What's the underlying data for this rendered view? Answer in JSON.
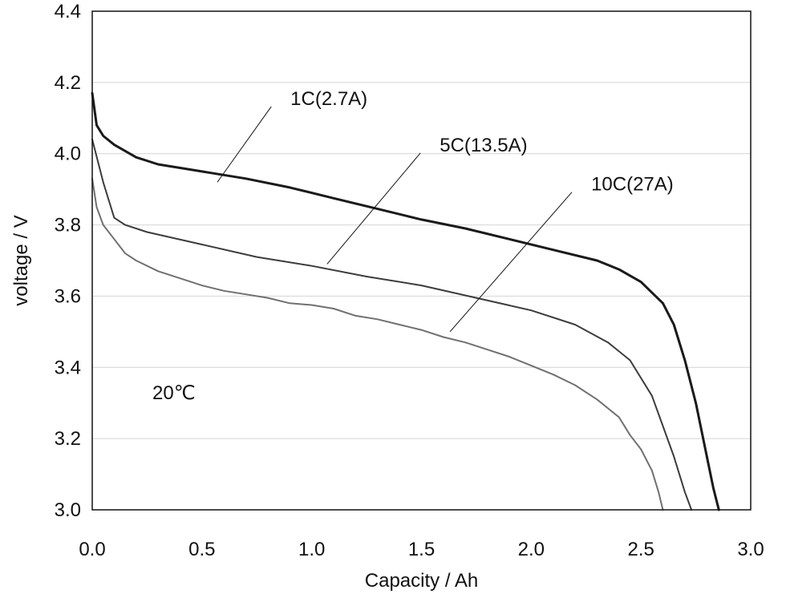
{
  "chart_data": {
    "type": "line",
    "title": "",
    "xlabel": "Capacity / Ah",
    "ylabel": "voltage / V",
    "xlim": [
      0.0,
      3.0
    ],
    "ylim": [
      3.0,
      4.4
    ],
    "xticks": [
      "0.0",
      "0.5",
      "1.0",
      "1.5",
      "2.0",
      "2.5",
      "3.0"
    ],
    "yticks": [
      "3.0",
      "3.2",
      "3.4",
      "3.6",
      "3.8",
      "4.0",
      "4.2",
      "4.4"
    ],
    "grid": "horizontal",
    "temperature_label": "20℃",
    "series": [
      {
        "name": "1C(2.7A)",
        "color": "#1a1a1a",
        "width": 3,
        "label_anchor": [
          0.83,
          4.15
        ],
        "leader_to": [
          0.57,
          3.92
        ],
        "points": [
          [
            0.0,
            4.17
          ],
          [
            0.02,
            4.08
          ],
          [
            0.05,
            4.05
          ],
          [
            0.1,
            4.025
          ],
          [
            0.2,
            3.99
          ],
          [
            0.3,
            3.97
          ],
          [
            0.5,
            3.95
          ],
          [
            0.7,
            3.93
          ],
          [
            0.9,
            3.905
          ],
          [
            1.1,
            3.875
          ],
          [
            1.3,
            3.845
          ],
          [
            1.5,
            3.815
          ],
          [
            1.7,
            3.79
          ],
          [
            1.9,
            3.76
          ],
          [
            2.1,
            3.73
          ],
          [
            2.3,
            3.7
          ],
          [
            2.4,
            3.675
          ],
          [
            2.5,
            3.64
          ],
          [
            2.6,
            3.58
          ],
          [
            2.65,
            3.52
          ],
          [
            2.7,
            3.42
          ],
          [
            2.75,
            3.3
          ],
          [
            2.8,
            3.15
          ],
          [
            2.83,
            3.06
          ],
          [
            2.855,
            3.0
          ]
        ]
      },
      {
        "name": "5C(13.5A)",
        "color": "#3c3c3c",
        "width": 2,
        "label_anchor": [
          1.51,
          4.02
        ],
        "leader_to": [
          1.07,
          3.69
        ],
        "points": [
          [
            0.0,
            4.04
          ],
          [
            0.05,
            3.92
          ],
          [
            0.1,
            3.82
          ],
          [
            0.15,
            3.8
          ],
          [
            0.25,
            3.78
          ],
          [
            0.5,
            3.745
          ],
          [
            0.75,
            3.71
          ],
          [
            1.0,
            3.685
          ],
          [
            1.25,
            3.655
          ],
          [
            1.5,
            3.63
          ],
          [
            1.75,
            3.595
          ],
          [
            2.0,
            3.56
          ],
          [
            2.2,
            3.52
          ],
          [
            2.35,
            3.47
          ],
          [
            2.45,
            3.42
          ],
          [
            2.55,
            3.32
          ],
          [
            2.65,
            3.15
          ],
          [
            2.7,
            3.05
          ],
          [
            2.73,
            3.0
          ]
        ]
      },
      {
        "name": "10C(27A)",
        "color": "#707070",
        "width": 2,
        "label_anchor": [
          2.2,
          3.91
        ],
        "leader_to": [
          1.63,
          3.5
        ],
        "points": [
          [
            0.0,
            3.93
          ],
          [
            0.02,
            3.85
          ],
          [
            0.05,
            3.8
          ],
          [
            0.1,
            3.76
          ],
          [
            0.15,
            3.72
          ],
          [
            0.2,
            3.7
          ],
          [
            0.3,
            3.67
          ],
          [
            0.4,
            3.65
          ],
          [
            0.5,
            3.63
          ],
          [
            0.6,
            3.615
          ],
          [
            0.7,
            3.605
          ],
          [
            0.8,
            3.595
          ],
          [
            0.9,
            3.58
          ],
          [
            1.0,
            3.575
          ],
          [
            1.1,
            3.565
          ],
          [
            1.2,
            3.545
          ],
          [
            1.3,
            3.535
          ],
          [
            1.4,
            3.52
          ],
          [
            1.5,
            3.505
          ],
          [
            1.6,
            3.485
          ],
          [
            1.7,
            3.47
          ],
          [
            1.8,
            3.45
          ],
          [
            1.9,
            3.43
          ],
          [
            2.0,
            3.405
          ],
          [
            2.1,
            3.38
          ],
          [
            2.2,
            3.35
          ],
          [
            2.3,
            3.31
          ],
          [
            2.4,
            3.26
          ],
          [
            2.45,
            3.21
          ],
          [
            2.5,
            3.17
          ],
          [
            2.55,
            3.11
          ],
          [
            2.58,
            3.05
          ],
          [
            2.6,
            3.0
          ]
        ]
      }
    ]
  }
}
